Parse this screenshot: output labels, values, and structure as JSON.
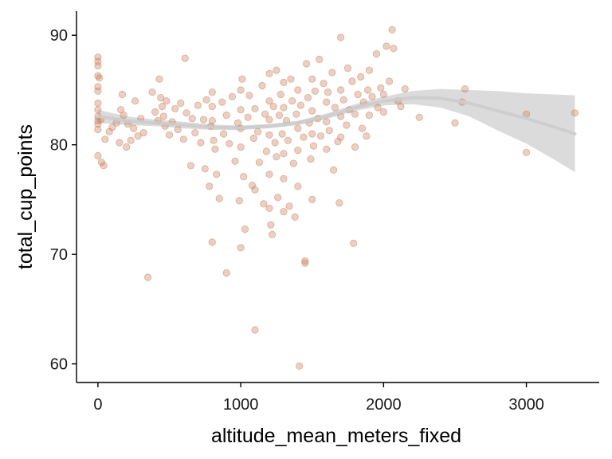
{
  "chart_data": {
    "type": "scatter",
    "title": "",
    "xlabel": "altitude_mean_meters_fixed",
    "ylabel": "total_cup_points",
    "xlim": [
      -150,
      3510
    ],
    "ylim": [
      58.3,
      92.2
    ],
    "x_ticks": [
      0,
      1000,
      2000,
      3000
    ],
    "x_tick_labels": [
      "0",
      "1000",
      "2000",
      "3000"
    ],
    "y_ticks": [
      60,
      70,
      80,
      90
    ],
    "y_tick_labels": [
      "60",
      "70",
      "80",
      "90"
    ],
    "grid": false,
    "legend": "none",
    "colors": {
      "points": "#c8805f",
      "smooth_line": "#cccccc",
      "confidence_band": "#bdbdbd",
      "axis": "#000000"
    },
    "series": [
      {
        "kind": "points",
        "points": [
          [
            0,
            88
          ],
          [
            0,
            87.6
          ],
          [
            0,
            87.2
          ],
          [
            0,
            86.3
          ],
          [
            0,
            85.3
          ],
          [
            0,
            84.9
          ],
          [
            0,
            83.8
          ],
          [
            0,
            83.2
          ],
          [
            0,
            82.6
          ],
          [
            0,
            82.2
          ],
          [
            0,
            81.9
          ],
          [
            0,
            81.4
          ],
          [
            0,
            79.0
          ],
          [
            10,
            86.1
          ],
          [
            20,
            82.3
          ],
          [
            25,
            78.4
          ],
          [
            40,
            78.1
          ],
          [
            50,
            80.5
          ],
          [
            80,
            81.2
          ],
          [
            100,
            81.6
          ],
          [
            130,
            82.0
          ],
          [
            150,
            80.2
          ],
          [
            160,
            83.2
          ],
          [
            170,
            84.6
          ],
          [
            180,
            82.7
          ],
          [
            200,
            79.8
          ],
          [
            210,
            81.9
          ],
          [
            230,
            80.4
          ],
          [
            250,
            81.5
          ],
          [
            260,
            84.0
          ],
          [
            280,
            80.8
          ],
          [
            300,
            82.4
          ],
          [
            320,
            81.1
          ],
          [
            350,
            67.9
          ],
          [
            380,
            84.8
          ],
          [
            400,
            83.0
          ],
          [
            420,
            82.2
          ],
          [
            430,
            86.0
          ],
          [
            440,
            84.3
          ],
          [
            450,
            83.5
          ],
          [
            460,
            82.6
          ],
          [
            470,
            81.7
          ],
          [
            480,
            84.0
          ],
          [
            500,
            80.9
          ],
          [
            520,
            82.1
          ],
          [
            540,
            83.3
          ],
          [
            560,
            81.4
          ],
          [
            580,
            83.8
          ],
          [
            600,
            80.5
          ],
          [
            610,
            87.9
          ],
          [
            620,
            82.9
          ],
          [
            650,
            78.1
          ],
          [
            660,
            82.4
          ],
          [
            680,
            81.1
          ],
          [
            700,
            83.6
          ],
          [
            720,
            80.2
          ],
          [
            740,
            82.3
          ],
          [
            750,
            77.8
          ],
          [
            760,
            84.1
          ],
          [
            780,
            76.2
          ],
          [
            790,
            81.7
          ],
          [
            800,
            71.1
          ],
          [
            800,
            84.8
          ],
          [
            800,
            83.5
          ],
          [
            800,
            82.2
          ],
          [
            810,
            80.4
          ],
          [
            820,
            79.6
          ],
          [
            830,
            77.3
          ],
          [
            850,
            75.1
          ],
          [
            870,
            83.9
          ],
          [
            880,
            81.0
          ],
          [
            900,
            68.3
          ],
          [
            900,
            82.7
          ],
          [
            920,
            80.1
          ],
          [
            940,
            84.4
          ],
          [
            960,
            78.5
          ],
          [
            980,
            82.0
          ],
          [
            990,
            74.9
          ],
          [
            1000,
            85.0
          ],
          [
            1000,
            83.2
          ],
          [
            1000,
            81.5
          ],
          [
            1000,
            79.8
          ],
          [
            1000,
            70.6
          ],
          [
            1010,
            86.0
          ],
          [
            1020,
            77.1
          ],
          [
            1030,
            72.3
          ],
          [
            1050,
            82.5
          ],
          [
            1060,
            84.5
          ],
          [
            1080,
            76.3
          ],
          [
            1090,
            80.6
          ],
          [
            1100,
            63.1
          ],
          [
            1100,
            75.9
          ],
          [
            1100,
            83.3
          ],
          [
            1120,
            81.2
          ],
          [
            1130,
            78.4
          ],
          [
            1150,
            85.4
          ],
          [
            1160,
            74.6
          ],
          [
            1170,
            82.8
          ],
          [
            1180,
            79.4
          ],
          [
            1200,
            86.5
          ],
          [
            1200,
            84.0
          ],
          [
            1200,
            82.3
          ],
          [
            1200,
            80.9
          ],
          [
            1200,
            77.3
          ],
          [
            1200,
            74.2
          ],
          [
            1210,
            72.7
          ],
          [
            1220,
            71.8
          ],
          [
            1230,
            83.5
          ],
          [
            1240,
            80.2
          ],
          [
            1250,
            86.8
          ],
          [
            1250,
            78.9
          ],
          [
            1260,
            75.2
          ],
          [
            1270,
            82.7
          ],
          [
            1280,
            84.6
          ],
          [
            1290,
            81.0
          ],
          [
            1300,
            85.7
          ],
          [
            1300,
            83.4
          ],
          [
            1300,
            79.2
          ],
          [
            1300,
            76.9
          ],
          [
            1300,
            73.9
          ],
          [
            1320,
            82.2
          ],
          [
            1330,
            80.4
          ],
          [
            1340,
            74.4
          ],
          [
            1350,
            86.0
          ],
          [
            1360,
            84.0
          ],
          [
            1370,
            78.3
          ],
          [
            1380,
            73.4
          ],
          [
            1390,
            82.8
          ],
          [
            1400,
            85.0
          ],
          [
            1400,
            81.5
          ],
          [
            1400,
            79.5
          ],
          [
            1400,
            76.2
          ],
          [
            1410,
            59.8
          ],
          [
            1420,
            83.6
          ],
          [
            1440,
            80.7
          ],
          [
            1450,
            69.4
          ],
          [
            1450,
            69.2
          ],
          [
            1460,
            87.4
          ],
          [
            1470,
            84.3
          ],
          [
            1480,
            82.0
          ],
          [
            1490,
            78.7
          ],
          [
            1500,
            86.0
          ],
          [
            1500,
            83.1
          ],
          [
            1500,
            81.0
          ],
          [
            1500,
            75.0
          ],
          [
            1510,
            79.9
          ],
          [
            1520,
            84.9
          ],
          [
            1540,
            82.4
          ],
          [
            1550,
            87.8
          ],
          [
            1560,
            80.8
          ],
          [
            1580,
            85.6
          ],
          [
            1600,
            83.9
          ],
          [
            1600,
            82.1
          ],
          [
            1600,
            79.6
          ],
          [
            1610,
            84.8
          ],
          [
            1620,
            81.3
          ],
          [
            1640,
            86.6
          ],
          [
            1650,
            77.7
          ],
          [
            1660,
            83.4
          ],
          [
            1680,
            80.3
          ],
          [
            1690,
            74.7
          ],
          [
            1700,
            89.8
          ],
          [
            1700,
            85.0
          ],
          [
            1700,
            82.6
          ],
          [
            1700,
            80.7
          ],
          [
            1720,
            84.1
          ],
          [
            1740,
            81.8
          ],
          [
            1750,
            87.0
          ],
          [
            1760,
            83.2
          ],
          [
            1780,
            85.8
          ],
          [
            1790,
            71.0
          ],
          [
            1800,
            82.8
          ],
          [
            1800,
            79.8
          ],
          [
            1820,
            84.6
          ],
          [
            1840,
            86.2
          ],
          [
            1850,
            81.5
          ],
          [
            1860,
            83.9
          ],
          [
            1880,
            80.8
          ],
          [
            1890,
            85.0
          ],
          [
            1900,
            86.8
          ],
          [
            1900,
            82.7
          ],
          [
            1920,
            84.4
          ],
          [
            1950,
            88.3
          ],
          [
            1960,
            83.4
          ],
          [
            1980,
            85.2
          ],
          [
            2000,
            84.6
          ],
          [
            2000,
            83.0
          ],
          [
            2020,
            89.0
          ],
          [
            2040,
            85.8
          ],
          [
            2060,
            90.5
          ],
          [
            2070,
            88.8
          ],
          [
            2100,
            84.0
          ],
          [
            2120,
            83.5
          ],
          [
            2150,
            85.1
          ],
          [
            2250,
            82.5
          ],
          [
            2500,
            82.0
          ],
          [
            2550,
            83.9
          ],
          [
            2570,
            85.1
          ],
          [
            3000,
            82.8
          ],
          [
            3000,
            79.3
          ],
          [
            3340,
            82.9
          ]
        ]
      },
      {
        "kind": "smooth",
        "x": [
          0,
          200,
          400,
          600,
          800,
          1000,
          1200,
          1400,
          1600,
          1800,
          2000,
          2200,
          2400,
          2600,
          2800,
          3000,
          3200,
          3340
        ],
        "y": [
          82.6,
          82.2,
          82.0,
          81.8,
          81.6,
          81.55,
          81.7,
          82.0,
          82.6,
          83.4,
          84.0,
          84.3,
          84.25,
          83.8,
          83.1,
          82.4,
          81.6,
          81.0
        ],
        "lower": [
          82.0,
          81.8,
          81.7,
          81.5,
          81.35,
          81.35,
          81.5,
          81.8,
          82.35,
          83.1,
          83.6,
          83.7,
          83.4,
          82.6,
          81.3,
          80.1,
          78.6,
          77.5
        ],
        "upper": [
          83.2,
          82.6,
          82.3,
          82.1,
          81.85,
          81.75,
          81.9,
          82.2,
          82.85,
          83.7,
          84.4,
          84.9,
          85.1,
          85.0,
          84.9,
          84.7,
          84.6,
          84.5
        ]
      }
    ]
  }
}
